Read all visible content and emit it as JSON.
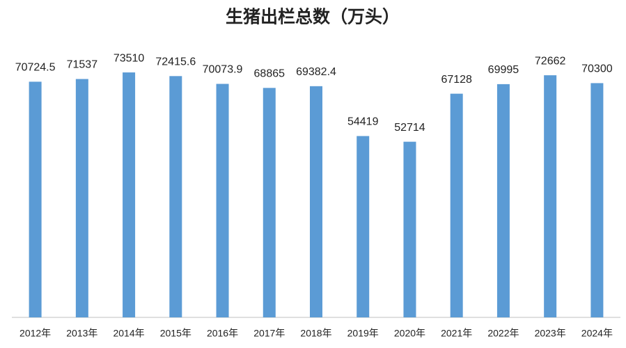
{
  "chart_data": {
    "type": "bar",
    "title": "生猪出栏总数（万头）",
    "categories": [
      "2012年",
      "2013年",
      "2014年",
      "2015年",
      "2016年",
      "2017年",
      "2018年",
      "2019年",
      "2020年",
      "2021年",
      "2022年",
      "2023年",
      "2024年"
    ],
    "values": [
      70724.5,
      71537,
      73510,
      72415.6,
      70073.9,
      68865,
      69382.4,
      54419,
      52714,
      67128,
      69995,
      72662,
      70300
    ],
    "color": "#5b9bd5",
    "ylim": [
      0,
      80000
    ]
  }
}
